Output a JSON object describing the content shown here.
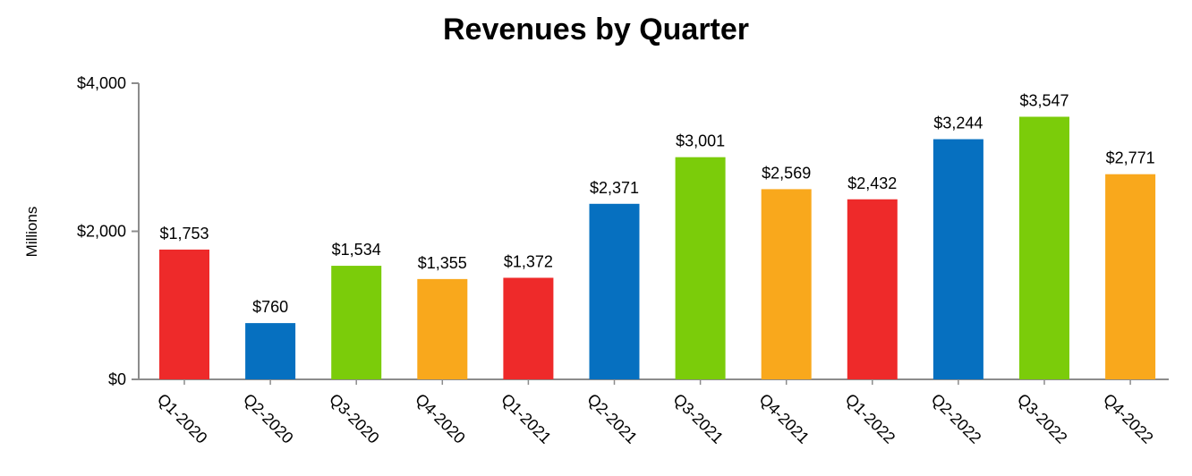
{
  "chart_data": {
    "type": "bar",
    "title": "Revenues by Quarter",
    "xlabel": "",
    "ylabel": "Millions",
    "ylim": [
      0,
      4000
    ],
    "yticks": [
      0,
      2000,
      4000
    ],
    "ytick_labels": [
      "$0",
      "$2,000",
      "$4,000"
    ],
    "categories": [
      "Q1-2020",
      "Q2-2020",
      "Q3-2020",
      "Q4-2020",
      "Q1-2021",
      "Q2-2021",
      "Q3-2021",
      "Q4-2021",
      "Q1-2022",
      "Q2-2022",
      "Q3-2022",
      "Q4-2022"
    ],
    "values": [
      1753,
      760,
      1534,
      1355,
      1372,
      2371,
      3001,
      2569,
      2432,
      3244,
      3547,
      2771
    ],
    "value_labels": [
      "$1,753",
      "$760",
      "$1,534",
      "$1,355",
      "$1,372",
      "$2,371",
      "$3,001",
      "$2,569",
      "$2,432",
      "$3,244",
      "$3,547",
      "$2,771"
    ],
    "bar_colors": [
      "#ee2a2a",
      "#0670c0",
      "#7bcc0a",
      "#f9a81c",
      "#ee2a2a",
      "#0670c0",
      "#7bcc0a",
      "#f9a81c",
      "#ee2a2a",
      "#0670c0",
      "#7bcc0a",
      "#f9a81c"
    ],
    "grid": false,
    "legend": "none"
  }
}
